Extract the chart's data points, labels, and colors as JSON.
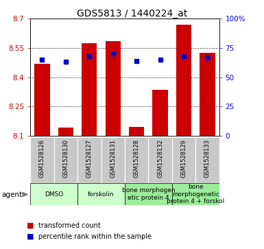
{
  "title": "GDS5813 / 1440224_at",
  "samples": [
    "GSM1528126",
    "GSM1528130",
    "GSM1528127",
    "GSM1528131",
    "GSM1528128",
    "GSM1528132",
    "GSM1528129",
    "GSM1528133"
  ],
  "bar_values": [
    8.47,
    8.14,
    8.575,
    8.585,
    8.145,
    8.335,
    8.67,
    8.525
  ],
  "percentile_values": [
    65,
    63,
    68,
    70,
    64,
    65,
    68,
    67
  ],
  "ymin": 8.1,
  "ymax": 8.7,
  "yticks_left": [
    8.1,
    8.25,
    8.4,
    8.55,
    8.7
  ],
  "yticks_right": [
    0,
    25,
    50,
    75,
    100
  ],
  "bar_color": "#cc0000",
  "dot_color": "#0000cc",
  "groups": [
    {
      "label": "DMSO",
      "start": 0,
      "end": 2,
      "color": "#ccffcc"
    },
    {
      "label": "forskolin",
      "start": 2,
      "end": 4,
      "color": "#ccffcc"
    },
    {
      "label": "bone morphogen\netic protein 4",
      "start": 4,
      "end": 6,
      "color": "#99ee99"
    },
    {
      "label": "bone\nmorphogenetic\nprotein 4 + forskol",
      "start": 6,
      "end": 8,
      "color": "#99ee99"
    }
  ],
  "bar_width": 0.65,
  "sample_bg": "#c8c8c8",
  "sample_sep": "#ffffff",
  "plot_bg": "#ffffff",
  "left_label_color": "#cc0000",
  "right_label_color": "#0000cc",
  "title_fontsize": 10,
  "tick_fontsize": 7.5,
  "sample_fontsize": 6,
  "group_fontsize": 6.5,
  "legend_fontsize": 7
}
